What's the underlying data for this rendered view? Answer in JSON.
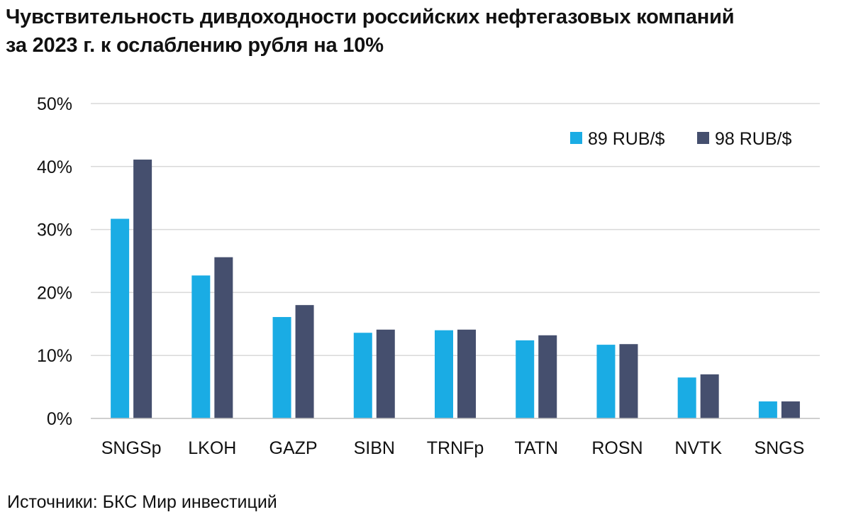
{
  "title_line1": "Чувствительность дивдоходности российских нефтегазовых компаний",
  "title_line2": "за 2023 г. к ослаблению рубля на 10%",
  "source": "Источники: БКС Мир инвестиций",
  "colors": {
    "series1": "#1aace4",
    "series2": "#454f6e",
    "grid": "#d9d9d9",
    "axis": "#bfbfbf"
  },
  "chart_data": {
    "type": "bar",
    "categories": [
      "SNGSp",
      "LKOH",
      "GAZP",
      "SIBN",
      "TRNFp",
      "TATN",
      "ROSN",
      "NVTK",
      "SNGS"
    ],
    "series": [
      {
        "name": "89 RUB/$",
        "values": [
          31.7,
          22.7,
          16.1,
          13.6,
          14.0,
          12.4,
          11.7,
          6.5,
          2.7
        ]
      },
      {
        "name": "98 RUB/$",
        "values": [
          41.1,
          25.6,
          18.0,
          14.1,
          14.1,
          13.2,
          11.8,
          7.0,
          2.7
        ]
      }
    ],
    "ylim": [
      0,
      50
    ],
    "yticks": [
      0,
      10,
      20,
      30,
      40,
      50
    ],
    "ytick_labels": [
      "0%",
      "10%",
      "20%",
      "30%",
      "40%",
      "50%"
    ],
    "grid": true,
    "legend_position": "top-right",
    "xlabel": "",
    "ylabel": ""
  }
}
